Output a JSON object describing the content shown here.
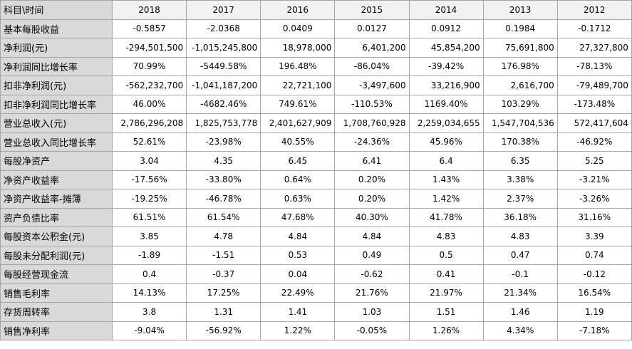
{
  "table": {
    "corner_label": "科目\\时间",
    "years": [
      "2018",
      "2017",
      "2016",
      "2015",
      "2014",
      "2013",
      "2012"
    ],
    "rows": [
      {
        "label": "基本每股收益",
        "align": "center",
        "values": [
          "-0.5857",
          "-2.0368",
          "0.0409",
          "0.0127",
          "0.0912",
          "0.1984",
          "-0.1712"
        ]
      },
      {
        "label": "净利润(元)",
        "align": "right",
        "values": [
          "-294,501,500",
          "-1,015,245,800",
          "18,978,000",
          "6,401,200",
          "45,854,200",
          "75,691,800",
          "27,327,800"
        ]
      },
      {
        "label": "净利润同比增长率",
        "align": "center",
        "values": [
          "70.99%",
          "-5449.58%",
          "196.48%",
          "-86.04%",
          "-39.42%",
          "176.98%",
          "-78.13%"
        ]
      },
      {
        "label": "扣非净利润(元)",
        "align": "right",
        "values": [
          "-562,232,700",
          "-1,041,187,200",
          "22,721,100",
          "-3,497,600",
          "33,216,900",
          "2,616,700",
          "-79,489,700"
        ]
      },
      {
        "label": "扣非净利润同比增长率",
        "align": "center",
        "values": [
          "46.00%",
          "-4682.46%",
          "749.61%",
          "-110.53%",
          "1169.40%",
          "103.29%",
          "-173.48%"
        ]
      },
      {
        "label": "营业总收入(元)",
        "align": "right",
        "values": [
          "2,786,296,208",
          "1,825,753,778",
          "2,401,627,909",
          "1,708,760,928",
          "2,259,034,655",
          "1,547,704,536",
          "572,417,604"
        ]
      },
      {
        "label": "营业总收入同比增长率",
        "align": "center",
        "values": [
          "52.61%",
          "-23.98%",
          "40.55%",
          "-24.36%",
          "45.96%",
          "170.38%",
          "-46.92%"
        ]
      },
      {
        "label": "每股净资产",
        "align": "center",
        "values": [
          "3.04",
          "4.35",
          "6.45",
          "6.41",
          "6.4",
          "6.35",
          "5.25"
        ]
      },
      {
        "label": "净资产收益率",
        "align": "center",
        "values": [
          "-17.56%",
          "-33.80%",
          "0.64%",
          "0.20%",
          "1.43%",
          "3.38%",
          "-3.21%"
        ]
      },
      {
        "label": "净资产收益率-摊薄",
        "align": "center",
        "values": [
          "-19.25%",
          "-46.78%",
          "0.63%",
          "0.20%",
          "1.42%",
          "2.37%",
          "-3.26%"
        ]
      },
      {
        "label": "资产负债比率",
        "align": "center",
        "values": [
          "61.51%",
          "61.54%",
          "47.68%",
          "40.30%",
          "41.78%",
          "36.18%",
          "31.16%"
        ]
      },
      {
        "label": "每股资本公积金(元)",
        "align": "center",
        "values": [
          "3.85",
          "4.78",
          "4.84",
          "4.84",
          "4.83",
          "4.83",
          "3.39"
        ]
      },
      {
        "label": "每股未分配利润(元)",
        "align": "center",
        "values": [
          "-1.89",
          "-1.51",
          "0.53",
          "0.49",
          "0.5",
          "0.47",
          "0.74"
        ]
      },
      {
        "label": "每股经营现金流",
        "align": "center",
        "values": [
          "0.4",
          "-0.37",
          "0.04",
          "-0.62",
          "0.41",
          "-0.1",
          "-0.12"
        ]
      },
      {
        "label": "销售毛利率",
        "align": "center",
        "values": [
          "14.13%",
          "17.25%",
          "22.49%",
          "21.76%",
          "21.97%",
          "21.34%",
          "16.54%"
        ]
      },
      {
        "label": "存货周转率",
        "align": "center",
        "values": [
          "3.8",
          "1.31",
          "1.41",
          "1.03",
          "1.51",
          "1.46",
          "1.19"
        ]
      },
      {
        "label": "销售净利率",
        "align": "center",
        "values": [
          "-9.04%",
          "-56.92%",
          "1.22%",
          "-0.05%",
          "1.26%",
          "4.34%",
          "-7.18%"
        ]
      }
    ]
  }
}
